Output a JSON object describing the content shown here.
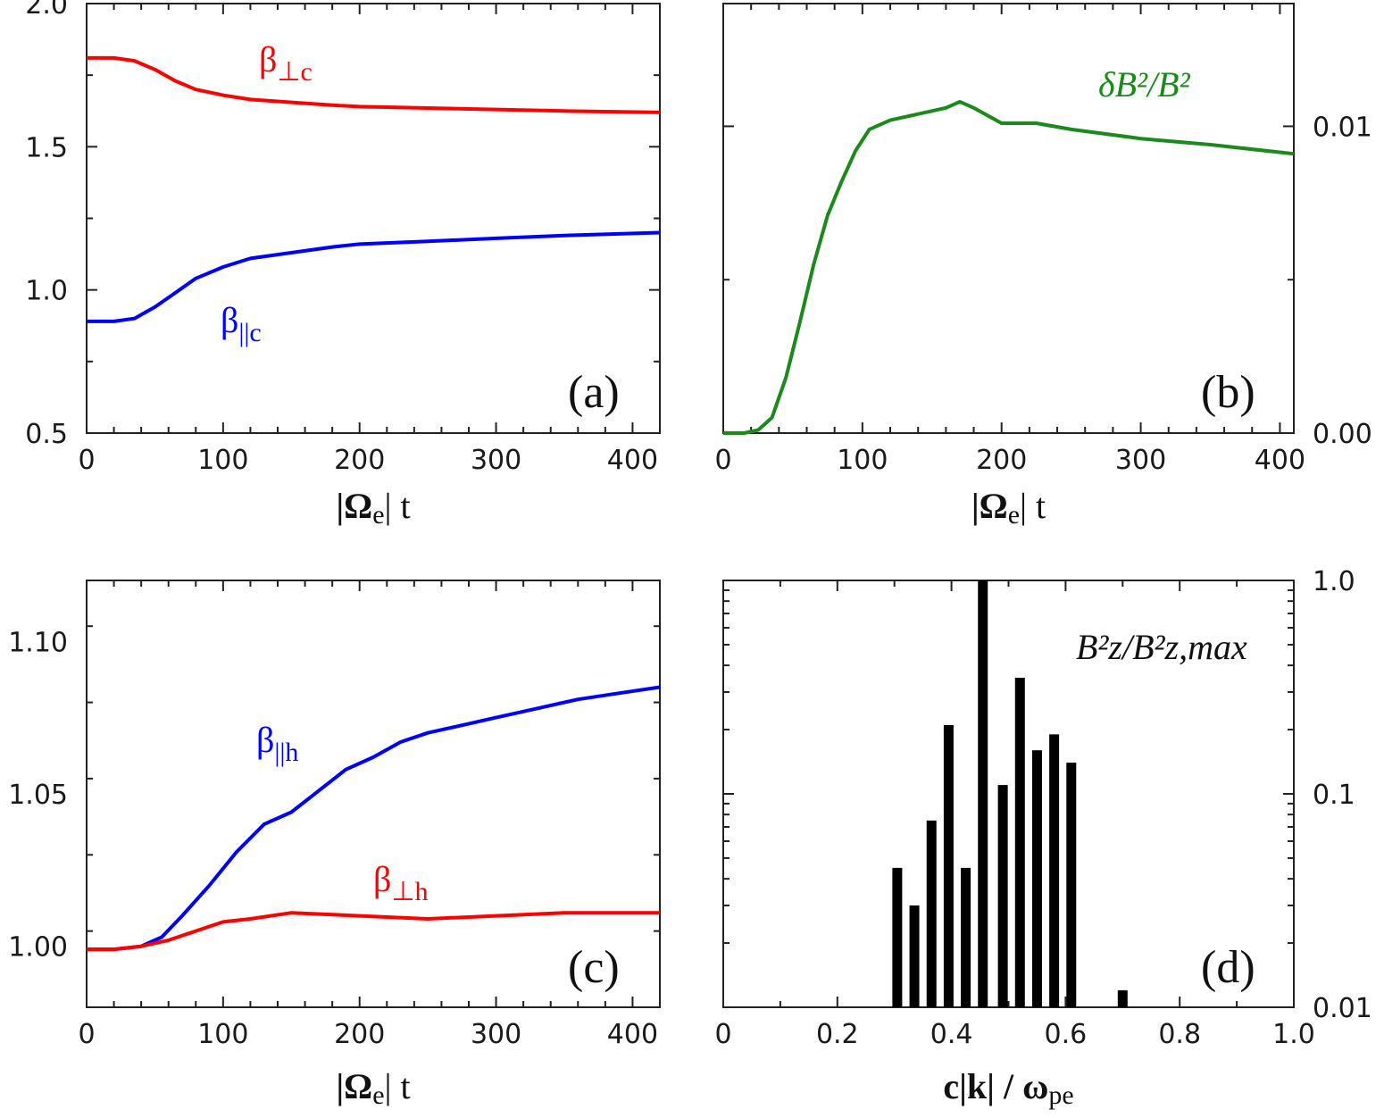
{
  "chart_data": [
    {
      "id": "a",
      "type": "line",
      "panel_label": "(a)",
      "xlabel": {
        "main": "|Ω",
        "sub": "e",
        "tail": "| t"
      },
      "xlim": [
        0,
        420
      ],
      "ylim": [
        0.5,
        2.0
      ],
      "x_ticks": [
        0,
        100,
        200,
        300,
        400
      ],
      "y_ticks": [
        0.5,
        1.0,
        1.5,
        2.0
      ],
      "x_tick_labels": [
        "0",
        "100",
        "200",
        "300",
        "400"
      ],
      "y_tick_labels": [
        "0.5",
        "1.0",
        "1.5",
        "2.0"
      ],
      "y_axis_side": "left",
      "series": [
        {
          "label_main": "β",
          "label_sub": "⊥c",
          "color": "#ff0000",
          "x": [
            0,
            20,
            35,
            50,
            65,
            80,
            100,
            120,
            150,
            180,
            200,
            250,
            300,
            350,
            420
          ],
          "y": [
            1.81,
            1.81,
            1.8,
            1.77,
            1.73,
            1.7,
            1.68,
            1.665,
            1.655,
            1.645,
            1.64,
            1.635,
            1.63,
            1.625,
            1.62
          ]
        },
        {
          "label_main": "β",
          "label_sub": "||c",
          "color": "#0000ff",
          "x": [
            0,
            20,
            35,
            50,
            65,
            80,
            100,
            120,
            150,
            180,
            200,
            250,
            300,
            350,
            420
          ],
          "y": [
            0.89,
            0.89,
            0.9,
            0.94,
            0.99,
            1.04,
            1.08,
            1.11,
            1.13,
            1.15,
            1.16,
            1.17,
            1.18,
            1.19,
            1.2
          ]
        }
      ]
    },
    {
      "id": "b",
      "type": "line",
      "panel_label": "(b)",
      "xlabel": {
        "main": "|Ω",
        "sub": "e",
        "tail": "| t"
      },
      "xlim": [
        0,
        410
      ],
      "ylim": [
        0,
        0.014
      ],
      "x_ticks": [
        0,
        100,
        200,
        300,
        400
      ],
      "y_ticks": [
        0.0,
        0.01
      ],
      "x_tick_labels": [
        "0",
        "100",
        "200",
        "300",
        "400"
      ],
      "y_tick_labels": [
        "0.00",
        "0.01"
      ],
      "y_axis_side": "right",
      "series": [
        {
          "label": "δB²/B²",
          "color": "#1a8a1a",
          "x": [
            0,
            15,
            25,
            35,
            45,
            55,
            65,
            75,
            85,
            95,
            105,
            120,
            140,
            160,
            170,
            180,
            200,
            225,
            250,
            300,
            350,
            410
          ],
          "y": [
            0.0,
            0.0,
            0.0001,
            0.0005,
            0.0018,
            0.0036,
            0.0055,
            0.0071,
            0.0082,
            0.0092,
            0.0099,
            0.0102,
            0.0104,
            0.0106,
            0.0108,
            0.0106,
            0.0101,
            0.0101,
            0.0099,
            0.0096,
            0.0094,
            0.0091
          ]
        }
      ]
    },
    {
      "id": "c",
      "type": "line",
      "panel_label": "(c)",
      "xlabel": {
        "main": "|Ω",
        "sub": "e",
        "tail": "| t"
      },
      "xlim": [
        0,
        420
      ],
      "ylim": [
        0.98,
        1.12
      ],
      "x_ticks": [
        0,
        100,
        200,
        300,
        400
      ],
      "y_ticks": [
        1.0,
        1.05,
        1.1
      ],
      "x_tick_labels": [
        "0",
        "100",
        "200",
        "300",
        "400"
      ],
      "y_tick_labels": [
        "1.00",
        "1.05",
        "1.10"
      ],
      "y_axis_side": "left",
      "series": [
        {
          "label_main": "β",
          "label_sub": "||h",
          "color": "#0000ff",
          "x": [
            0,
            20,
            40,
            55,
            70,
            90,
            110,
            130,
            150,
            170,
            190,
            210,
            230,
            250,
            270,
            300,
            330,
            360,
            390,
            420
          ],
          "y": [
            0.999,
            0.999,
            1.0,
            1.003,
            1.01,
            1.02,
            1.031,
            1.04,
            1.044,
            1.051,
            1.058,
            1.062,
            1.067,
            1.07,
            1.072,
            1.075,
            1.078,
            1.081,
            1.083,
            1.085
          ]
        },
        {
          "label_main": "β",
          "label_sub": "⊥h",
          "color": "#ff0000",
          "x": [
            0,
            20,
            40,
            60,
            80,
            100,
            120,
            150,
            200,
            250,
            300,
            350,
            420
          ],
          "y": [
            0.999,
            0.999,
            1.0,
            1.002,
            1.005,
            1.008,
            1.009,
            1.011,
            1.01,
            1.009,
            1.01,
            1.011,
            1.011
          ]
        }
      ]
    },
    {
      "id": "d",
      "type": "bar",
      "panel_label": "(d)",
      "xlabel": {
        "main": "c|k| / ω",
        "sub": "pe",
        "tail": ""
      },
      "xlim": [
        0,
        1.0
      ],
      "ylim": [
        0.01,
        1.0
      ],
      "yscale": "log",
      "x_ticks": [
        0,
        0.2,
        0.4,
        0.6,
        0.8,
        1.0
      ],
      "y_ticks": [
        0.01,
        0.1,
        1.0
      ],
      "x_tick_labels": [
        "0",
        "0.2",
        "0.4",
        "0.6",
        "0.8",
        "1.0"
      ],
      "y_tick_labels": [
        "0.01",
        "0.1",
        "1.0"
      ],
      "y_axis_side": "right",
      "series": [
        {
          "label": "B²z/B²z,max",
          "color": "#000000",
          "x": [
            0.305,
            0.335,
            0.365,
            0.395,
            0.425,
            0.455,
            0.49,
            0.52,
            0.55,
            0.58,
            0.61,
            0.7
          ],
          "y": [
            0.045,
            0.03,
            0.075,
            0.21,
            0.045,
            1.0,
            0.11,
            0.35,
            0.16,
            0.19,
            0.14,
            0.012
          ]
        }
      ]
    }
  ]
}
